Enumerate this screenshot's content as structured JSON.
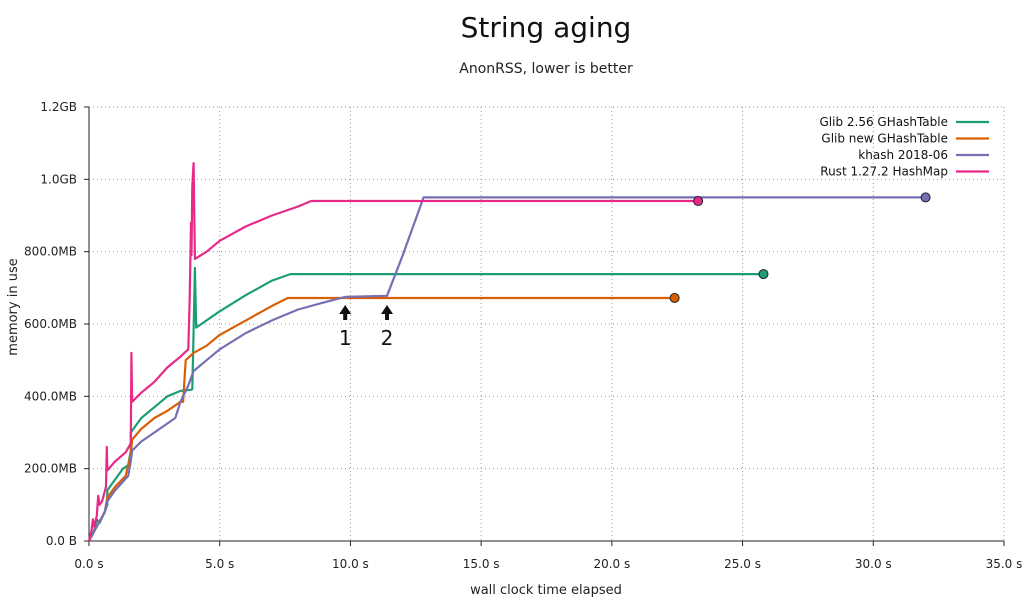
{
  "chart_data": {
    "type": "line",
    "title": "String aging",
    "subtitle": "AnonRSS, lower is better",
    "xlabel": "wall clock time elapsed",
    "ylabel": "memory in use",
    "xlim": [
      0,
      35
    ],
    "ylim": [
      0,
      1200
    ],
    "x_ticks": [
      {
        "value": 0,
        "label": "0.0 s"
      },
      {
        "value": 5,
        "label": "5.0 s"
      },
      {
        "value": 10,
        "label": "10.0 s"
      },
      {
        "value": 15,
        "label": "15.0 s"
      },
      {
        "value": 20,
        "label": "20.0 s"
      },
      {
        "value": 25,
        "label": "25.0 s"
      },
      {
        "value": 30,
        "label": "30.0 s"
      },
      {
        "value": 35,
        "label": "35.0 s"
      }
    ],
    "y_ticks": [
      {
        "value": 0,
        "label": "0.0 B"
      },
      {
        "value": 200,
        "label": "200.0MB"
      },
      {
        "value": 400,
        "label": "400.0MB"
      },
      {
        "value": 600,
        "label": "600.0MB"
      },
      {
        "value": 800,
        "label": "800.0MB"
      },
      {
        "value": 1000,
        "label": "1.0GB"
      },
      {
        "value": 1200,
        "label": "1.2GB"
      }
    ],
    "grid": true,
    "legend_position": "top-right",
    "series": [
      {
        "name": "Glib 2.56 GHashTable",
        "color": "#1b9e77",
        "points": [
          [
            0,
            0
          ],
          [
            0.2,
            30
          ],
          [
            0.3,
            60
          ],
          [
            0.4,
            50
          ],
          [
            0.6,
            80
          ],
          [
            0.7,
            100
          ],
          [
            0.7,
            140
          ],
          [
            1.0,
            170
          ],
          [
            1.3,
            200
          ],
          [
            1.5,
            210
          ],
          [
            1.6,
            250
          ],
          [
            1.6,
            300
          ],
          [
            2.0,
            340
          ],
          [
            2.5,
            370
          ],
          [
            3.0,
            400
          ],
          [
            3.5,
            415
          ],
          [
            3.9,
            418
          ],
          [
            3.95,
            420
          ],
          [
            4.0,
            580
          ],
          [
            4.05,
            755
          ],
          [
            4.1,
            590
          ],
          [
            4.5,
            610
          ],
          [
            5.0,
            635
          ],
          [
            6.0,
            680
          ],
          [
            7.0,
            720
          ],
          [
            7.7,
            738
          ],
          [
            10,
            738
          ],
          [
            15,
            738
          ],
          [
            20,
            738
          ],
          [
            25.8,
            738
          ]
        ],
        "end_marker": [
          25.8,
          738
        ]
      },
      {
        "name": "Glib new GHashTable",
        "color": "#d95f02",
        "points": [
          [
            0,
            0
          ],
          [
            0.3,
            40
          ],
          [
            0.6,
            80
          ],
          [
            0.7,
            120
          ],
          [
            1.0,
            150
          ],
          [
            1.4,
            180
          ],
          [
            1.6,
            240
          ],
          [
            1.65,
            280
          ],
          [
            2.0,
            310
          ],
          [
            2.5,
            340
          ],
          [
            3.0,
            360
          ],
          [
            3.5,
            385
          ],
          [
            3.6,
            385
          ],
          [
            3.7,
            500
          ],
          [
            4.0,
            520
          ],
          [
            4.5,
            540
          ],
          [
            5.0,
            570
          ],
          [
            6.0,
            610
          ],
          [
            7.0,
            650
          ],
          [
            7.6,
            672
          ],
          [
            10,
            672
          ],
          [
            15,
            672
          ],
          [
            20,
            672
          ],
          [
            22.4,
            672
          ]
        ],
        "end_marker": [
          22.4,
          672
        ]
      },
      {
        "name": "khash 2018-06",
        "color": "#7570b3",
        "points": [
          [
            0,
            0
          ],
          [
            0.3,
            40
          ],
          [
            0.6,
            80
          ],
          [
            0.7,
            110
          ],
          [
            1.0,
            140
          ],
          [
            1.5,
            180
          ],
          [
            1.6,
            220
          ],
          [
            1.65,
            250
          ],
          [
            2.0,
            275
          ],
          [
            2.5,
            300
          ],
          [
            3.0,
            325
          ],
          [
            3.3,
            340
          ],
          [
            3.5,
            385
          ],
          [
            3.8,
            430
          ],
          [
            4.0,
            470
          ],
          [
            4.5,
            500
          ],
          [
            5.0,
            530
          ],
          [
            6.0,
            575
          ],
          [
            7.0,
            610
          ],
          [
            8.0,
            640
          ],
          [
            9.0,
            660
          ],
          [
            9.8,
            675
          ],
          [
            11.4,
            678
          ],
          [
            12.0,
            790
          ],
          [
            12.8,
            950
          ],
          [
            15,
            950
          ],
          [
            20,
            950
          ],
          [
            25,
            950
          ],
          [
            32.0,
            950
          ]
        ],
        "end_marker": [
          32.0,
          950
        ]
      },
      {
        "name": "Rust 1.27.2 HashMap",
        "color": "#e7298a",
        "points": [
          [
            0,
            0
          ],
          [
            0.1,
            30
          ],
          [
            0.15,
            60
          ],
          [
            0.2,
            40
          ],
          [
            0.3,
            70
          ],
          [
            0.35,
            125
          ],
          [
            0.4,
            100
          ],
          [
            0.5,
            110
          ],
          [
            0.65,
            150
          ],
          [
            0.68,
            260
          ],
          [
            0.7,
            195
          ],
          [
            1.0,
            220
          ],
          [
            1.4,
            245
          ],
          [
            1.6,
            270
          ],
          [
            1.62,
            520
          ],
          [
            1.65,
            385
          ],
          [
            2.0,
            410
          ],
          [
            2.5,
            440
          ],
          [
            3.0,
            480
          ],
          [
            3.5,
            510
          ],
          [
            3.8,
            530
          ],
          [
            3.85,
            670
          ],
          [
            3.9,
            880
          ],
          [
            3.92,
            790
          ],
          [
            3.95,
            980
          ],
          [
            4.0,
            1045
          ],
          [
            4.05,
            780
          ],
          [
            4.5,
            800
          ],
          [
            5.0,
            830
          ],
          [
            6.0,
            870
          ],
          [
            7.0,
            900
          ],
          [
            8.0,
            925
          ],
          [
            8.5,
            940
          ],
          [
            10,
            940
          ],
          [
            15,
            940
          ],
          [
            20,
            940
          ],
          [
            23.3,
            940
          ]
        ],
        "end_marker": [
          23.3,
          940
        ]
      }
    ],
    "annotations": [
      {
        "label": "1",
        "x": 9.8
      },
      {
        "label": "2",
        "x": 11.4
      }
    ]
  }
}
